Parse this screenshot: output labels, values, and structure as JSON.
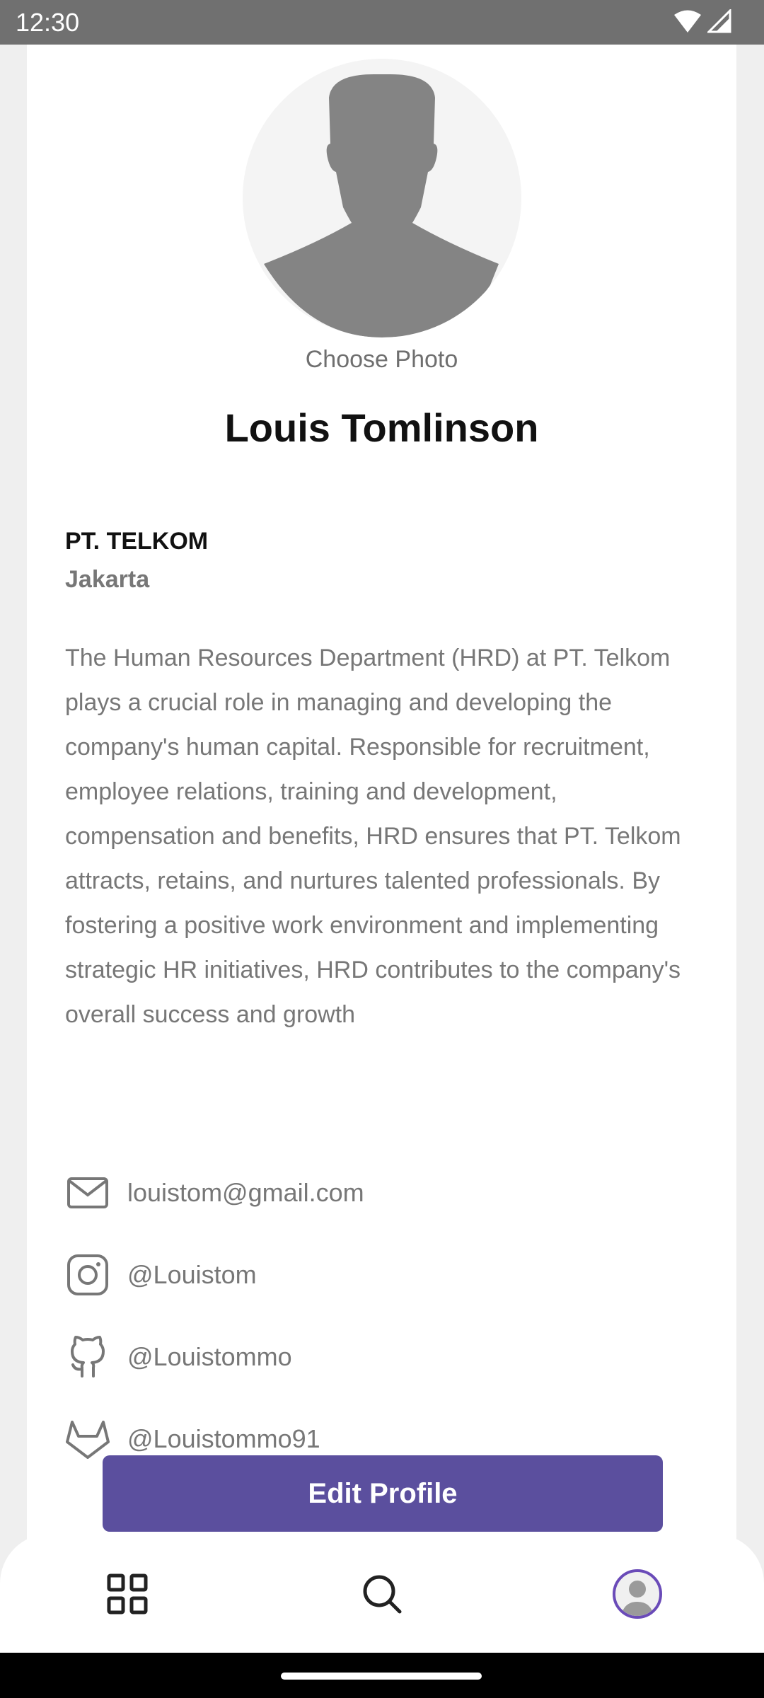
{
  "status_bar": {
    "time": "12:30",
    "icons": [
      "wifi-icon",
      "signal-icon"
    ]
  },
  "profile": {
    "choose_photo": "Choose Photo",
    "name": "Louis Tomlinson",
    "company": "PT. TELKOM",
    "city": "Jakarta",
    "bio": "The Human Resources Department (HRD) at PT. Telkom plays a crucial role in managing and developing the company's human capital. Responsible for recruitment, employee relations, training and development, compensation and benefits, HRD ensures that PT. Telkom attracts, retains, and nurtures talented professionals. By fostering a positive work environment and implementing strategic HR initiatives, HRD contributes to the company's overall success and growth"
  },
  "contacts": {
    "email": "louistom@gmail.com",
    "instagram": "@Louistom",
    "github": "@Louistommo",
    "gitlab": "@Louistommo91"
  },
  "actions": {
    "edit_profile": "Edit Profile"
  },
  "bottom_nav": {
    "items": [
      "grid-icon",
      "search-icon",
      "profile-avatar"
    ]
  },
  "colors": {
    "accent": "#5b4f9e",
    "status_bar": "#707070",
    "text_secondary": "#777777"
  }
}
